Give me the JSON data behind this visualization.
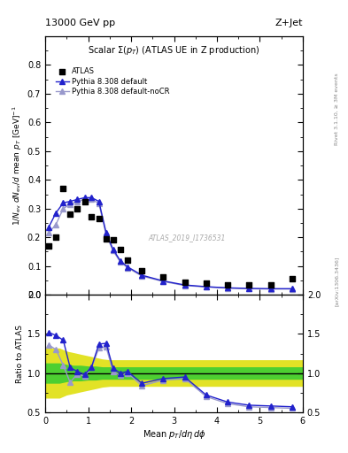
{
  "title_top_left": "13000 GeV pp",
  "title_top_right": "Z+Jet",
  "plot_title": "Scalar Σ(p_{T}) (ATLAS UE in Z production)",
  "watermark": "ATLAS_2019_I1736531",
  "right_label_top": "Rivet 3.1.10, ≥ 3M events",
  "right_label_bottom": "[arXiv:1306.3436]",
  "xlabel": "Mean p_{T}/dη dφ",
  "xlim": [
    0,
    6
  ],
  "ylim_main": [
    0,
    0.9
  ],
  "ylim_ratio": [
    0.5,
    2.0
  ],
  "atlas_x": [
    0.08,
    0.25,
    0.42,
    0.58,
    0.75,
    0.92,
    1.08,
    1.25,
    1.42,
    1.58,
    1.75,
    1.92,
    2.25,
    2.75,
    3.25,
    3.75,
    4.25,
    4.75,
    5.25,
    5.75
  ],
  "atlas_y": [
    0.17,
    0.2,
    0.37,
    0.28,
    0.3,
    0.325,
    0.272,
    0.265,
    0.195,
    0.19,
    0.156,
    0.122,
    0.083,
    0.063,
    0.045,
    0.04,
    0.035,
    0.035,
    0.035,
    0.055
  ],
  "pythia_default_x": [
    0.08,
    0.25,
    0.42,
    0.58,
    0.75,
    0.92,
    1.08,
    1.25,
    1.42,
    1.58,
    1.75,
    1.92,
    2.25,
    2.75,
    3.25,
    3.75,
    4.25,
    4.75,
    5.25,
    5.75
  ],
  "pythia_default_y": [
    0.235,
    0.285,
    0.32,
    0.325,
    0.332,
    0.338,
    0.338,
    0.325,
    0.215,
    0.158,
    0.118,
    0.097,
    0.068,
    0.048,
    0.034,
    0.028,
    0.024,
    0.022,
    0.021,
    0.021
  ],
  "pythia_nocr_x": [
    0.08,
    0.25,
    0.42,
    0.58,
    0.75,
    0.92,
    1.08,
    1.25,
    1.42,
    1.58,
    1.75,
    1.92,
    2.25,
    2.75,
    3.25,
    3.75,
    4.25,
    4.75,
    5.25,
    5.75
  ],
  "pythia_nocr_y": [
    0.215,
    0.245,
    0.3,
    0.315,
    0.325,
    0.332,
    0.332,
    0.318,
    0.208,
    0.153,
    0.114,
    0.094,
    0.065,
    0.046,
    0.032,
    0.027,
    0.023,
    0.021,
    0.02,
    0.02
  ],
  "ratio_default_y": [
    1.52,
    1.48,
    1.42,
    1.07,
    1.02,
    0.98,
    1.08,
    1.37,
    1.38,
    1.06,
    1.0,
    1.02,
    0.87,
    0.93,
    0.95,
    0.72,
    0.63,
    0.59,
    0.58,
    0.57
  ],
  "ratio_nocr_y": [
    1.36,
    1.3,
    1.1,
    0.88,
    0.99,
    0.96,
    1.07,
    1.32,
    1.33,
    1.02,
    0.97,
    1.0,
    0.84,
    0.91,
    0.93,
    0.7,
    0.61,
    0.57,
    0.56,
    0.55
  ],
  "color_atlas": "#000000",
  "color_default": "#2222cc",
  "color_nocr": "#9999cc",
  "color_band_inner": "#33cc33",
  "color_band_outer": "#dddd00",
  "line_width": 1.0,
  "marker_size": 4,
  "atlas_marker_size": 5
}
